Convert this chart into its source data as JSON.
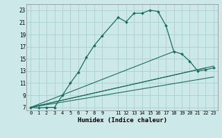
{
  "xlabel": "Humidex (Indice chaleur)",
  "bg_color": "#cce8e8",
  "grid_color": "#aacfcf",
  "line_color": "#1a6b5e",
  "xlim": [
    -0.5,
    23.5
  ],
  "ylim": [
    6.5,
    24
  ],
  "yticks": [
    7,
    9,
    11,
    13,
    15,
    17,
    19,
    21,
    23
  ],
  "xticks": [
    0,
    1,
    2,
    3,
    4,
    5,
    6,
    7,
    8,
    9,
    11,
    12,
    13,
    14,
    15,
    16,
    17,
    18,
    19,
    20,
    21,
    22,
    23
  ],
  "main_x": [
    0,
    1,
    2,
    3,
    4,
    5,
    6,
    7,
    8,
    9,
    11,
    12,
    13,
    14,
    15,
    16,
    17,
    18,
    19,
    20,
    21,
    22,
    23
  ],
  "main_y": [
    7,
    6.9,
    7,
    7,
    9,
    11,
    12.8,
    15.2,
    17.2,
    18.8,
    21.8,
    21.1,
    22.5,
    22.5,
    23.0,
    22.8,
    20.5,
    16.2,
    15.8,
    14.6,
    13.0,
    13.2,
    13.5
  ],
  "line2_x": [
    0,
    18
  ],
  "line2_y": [
    7,
    16.2
  ],
  "line3_x": [
    0,
    22
  ],
  "line3_y": [
    7,
    13.5
  ],
  "line4_x": [
    0,
    23
  ],
  "line4_y": [
    7,
    13.8
  ],
  "line5_x": [
    0,
    23
  ],
  "line5_y": [
    7,
    12.0
  ]
}
